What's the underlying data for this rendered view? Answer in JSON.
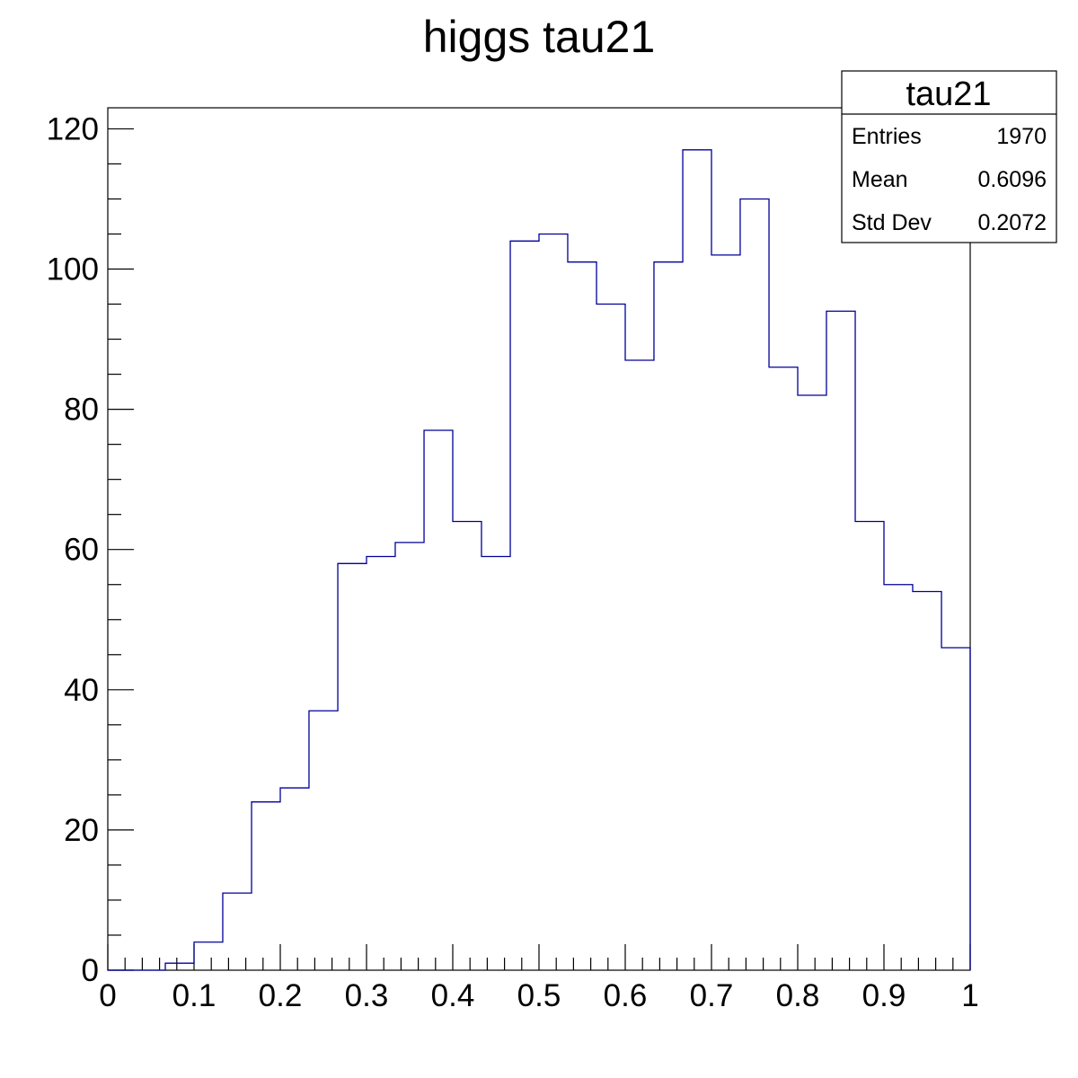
{
  "chart_data": {
    "type": "histogram",
    "title": "higgs tau21",
    "xlabel": "",
    "ylabel": "",
    "xlim": [
      0,
      1
    ],
    "ylim": [
      0,
      123
    ],
    "bin_edges": [
      0,
      0.0333,
      0.0667,
      0.1,
      0.1333,
      0.1667,
      0.2,
      0.2333,
      0.2667,
      0.3,
      0.3333,
      0.3667,
      0.4,
      0.4333,
      0.4667,
      0.5,
      0.5333,
      0.5667,
      0.6,
      0.6333,
      0.6667,
      0.7,
      0.7333,
      0.7667,
      0.8,
      0.8333,
      0.8667,
      0.9,
      0.9333,
      0.9667,
      1.0
    ],
    "values": [
      0,
      0,
      1,
      4,
      11,
      24,
      26,
      37,
      58,
      59,
      61,
      77,
      64,
      59,
      104,
      105,
      101,
      95,
      87,
      101,
      117,
      102,
      110,
      86,
      82,
      94,
      64,
      55,
      54,
      46
    ],
    "line_color": "#000099",
    "x_tick_labels": [
      "0",
      "0.1",
      "0.2",
      "0.3",
      "0.4",
      "0.5",
      "0.6",
      "0.7",
      "0.8",
      "0.9",
      "1"
    ],
    "y_tick_labels": [
      "0",
      "20",
      "40",
      "60",
      "80",
      "100",
      "120"
    ],
    "grid": false,
    "legend": "top-right",
    "stats": {
      "title": "tau21",
      "rows": [
        {
          "label": "Entries",
          "value": "1970"
        },
        {
          "label": "Mean",
          "value": "0.6096"
        },
        {
          "label": "Std Dev",
          "value": "0.2072"
        }
      ]
    }
  }
}
